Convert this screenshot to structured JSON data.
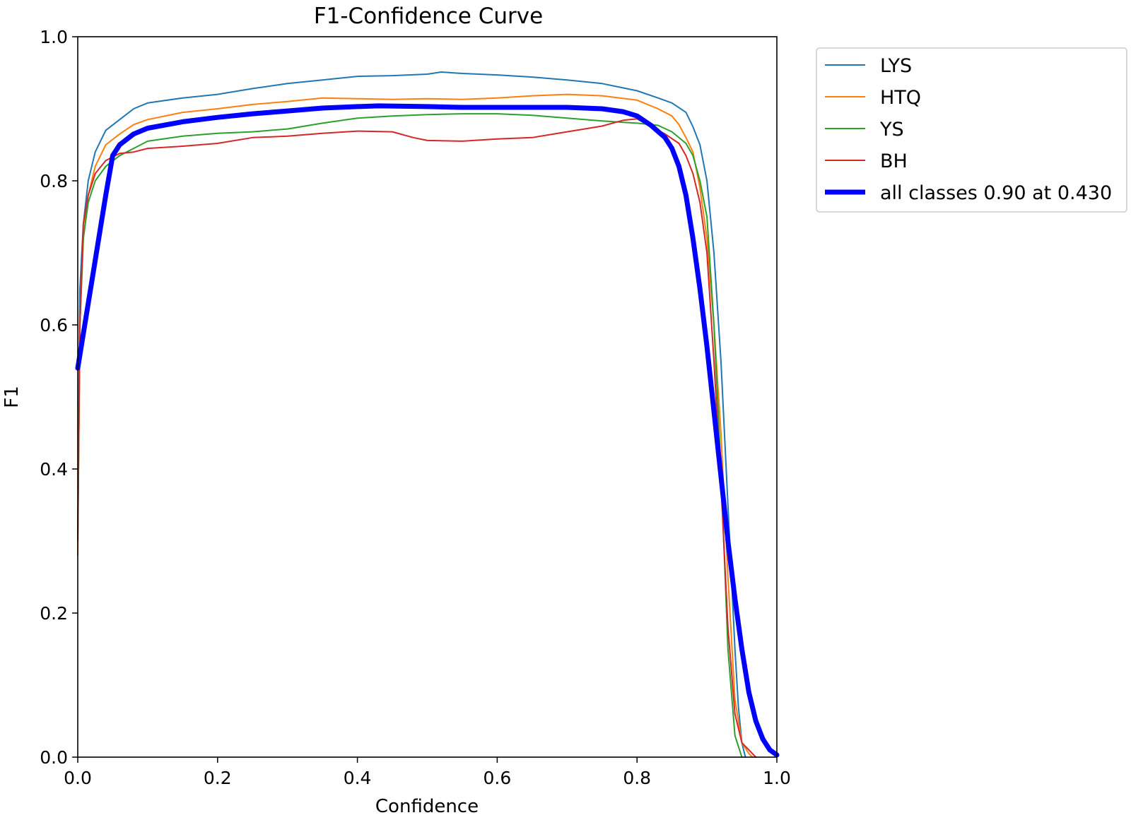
{
  "chart_data": {
    "type": "line",
    "title": "F1-Confidence Curve",
    "xlabel": "Confidence",
    "ylabel": "F1",
    "xlim": [
      0.0,
      1.0
    ],
    "ylim": [
      0.0,
      1.0
    ],
    "xticks": [
      "0.0",
      "0.2",
      "0.4",
      "0.6",
      "0.8",
      "1.0"
    ],
    "yticks": [
      "0.0",
      "0.2",
      "0.4",
      "0.6",
      "0.8",
      "1.0"
    ],
    "xtick_values": [
      0.0,
      0.2,
      0.4,
      0.6,
      0.8,
      1.0
    ],
    "ytick_values": [
      0.0,
      0.2,
      0.4,
      0.6,
      0.8,
      1.0
    ],
    "grid": false,
    "legend_position": "outside-right-top",
    "series": [
      {
        "name": "LYS",
        "color": "#1f77b4",
        "points": [
          [
            0.0,
            0.3
          ],
          [
            0.003,
            0.65
          ],
          [
            0.008,
            0.74
          ],
          [
            0.015,
            0.8
          ],
          [
            0.025,
            0.84
          ],
          [
            0.04,
            0.87
          ],
          [
            0.06,
            0.885
          ],
          [
            0.08,
            0.9
          ],
          [
            0.1,
            0.908
          ],
          [
            0.15,
            0.915
          ],
          [
            0.2,
            0.92
          ],
          [
            0.25,
            0.928
          ],
          [
            0.3,
            0.935
          ],
          [
            0.35,
            0.94
          ],
          [
            0.4,
            0.945
          ],
          [
            0.45,
            0.946
          ],
          [
            0.5,
            0.948
          ],
          [
            0.52,
            0.951
          ],
          [
            0.55,
            0.949
          ],
          [
            0.6,
            0.947
          ],
          [
            0.65,
            0.944
          ],
          [
            0.7,
            0.94
          ],
          [
            0.75,
            0.935
          ],
          [
            0.8,
            0.925
          ],
          [
            0.83,
            0.915
          ],
          [
            0.85,
            0.908
          ],
          [
            0.87,
            0.895
          ],
          [
            0.88,
            0.875
          ],
          [
            0.89,
            0.85
          ],
          [
            0.9,
            0.8
          ],
          [
            0.91,
            0.7
          ],
          [
            0.92,
            0.55
          ],
          [
            0.93,
            0.35
          ],
          [
            0.94,
            0.15
          ],
          [
            0.945,
            0.07
          ],
          [
            0.95,
            0.02
          ],
          [
            0.955,
            0.0
          ]
        ]
      },
      {
        "name": "HTQ",
        "color": "#ff7f0e",
        "points": [
          [
            0.0,
            0.28
          ],
          [
            0.003,
            0.6
          ],
          [
            0.008,
            0.72
          ],
          [
            0.015,
            0.78
          ],
          [
            0.025,
            0.82
          ],
          [
            0.04,
            0.85
          ],
          [
            0.06,
            0.865
          ],
          [
            0.08,
            0.878
          ],
          [
            0.1,
            0.885
          ],
          [
            0.15,
            0.895
          ],
          [
            0.2,
            0.9
          ],
          [
            0.25,
            0.906
          ],
          [
            0.3,
            0.91
          ],
          [
            0.35,
            0.915
          ],
          [
            0.4,
            0.914
          ],
          [
            0.45,
            0.913
          ],
          [
            0.5,
            0.914
          ],
          [
            0.55,
            0.913
          ],
          [
            0.6,
            0.915
          ],
          [
            0.65,
            0.918
          ],
          [
            0.7,
            0.92
          ],
          [
            0.75,
            0.918
          ],
          [
            0.8,
            0.912
          ],
          [
            0.83,
            0.9
          ],
          [
            0.85,
            0.89
          ],
          [
            0.86,
            0.878
          ],
          [
            0.87,
            0.86
          ],
          [
            0.88,
            0.84
          ],
          [
            0.89,
            0.79
          ],
          [
            0.9,
            0.72
          ],
          [
            0.91,
            0.6
          ],
          [
            0.92,
            0.45
          ],
          [
            0.93,
            0.25
          ],
          [
            0.94,
            0.08
          ],
          [
            0.95,
            0.02
          ],
          [
            0.96,
            0.005
          ],
          [
            0.965,
            0.0
          ]
        ]
      },
      {
        "name": "YS",
        "color": "#2ca02c",
        "points": [
          [
            0.0,
            0.3
          ],
          [
            0.003,
            0.6
          ],
          [
            0.008,
            0.72
          ],
          [
            0.015,
            0.77
          ],
          [
            0.025,
            0.8
          ],
          [
            0.04,
            0.82
          ],
          [
            0.06,
            0.835
          ],
          [
            0.08,
            0.845
          ],
          [
            0.1,
            0.855
          ],
          [
            0.15,
            0.862
          ],
          [
            0.2,
            0.866
          ],
          [
            0.25,
            0.868
          ],
          [
            0.3,
            0.872
          ],
          [
            0.35,
            0.88
          ],
          [
            0.4,
            0.887
          ],
          [
            0.45,
            0.89
          ],
          [
            0.5,
            0.892
          ],
          [
            0.55,
            0.893
          ],
          [
            0.6,
            0.893
          ],
          [
            0.65,
            0.891
          ],
          [
            0.7,
            0.887
          ],
          [
            0.75,
            0.883
          ],
          [
            0.8,
            0.88
          ],
          [
            0.83,
            0.877
          ],
          [
            0.85,
            0.868
          ],
          [
            0.87,
            0.852
          ],
          [
            0.88,
            0.835
          ],
          [
            0.89,
            0.8
          ],
          [
            0.9,
            0.75
          ],
          [
            0.91,
            0.6
          ],
          [
            0.92,
            0.4
          ],
          [
            0.93,
            0.15
          ],
          [
            0.94,
            0.03
          ],
          [
            0.95,
            0.0
          ]
        ]
      },
      {
        "name": "BH",
        "color": "#d62728",
        "points": [
          [
            0.0,
            0.3
          ],
          [
            0.003,
            0.6
          ],
          [
            0.008,
            0.74
          ],
          [
            0.015,
            0.78
          ],
          [
            0.025,
            0.81
          ],
          [
            0.04,
            0.828
          ],
          [
            0.06,
            0.838
          ],
          [
            0.08,
            0.84
          ],
          [
            0.1,
            0.845
          ],
          [
            0.15,
            0.848
          ],
          [
            0.2,
            0.852
          ],
          [
            0.25,
            0.86
          ],
          [
            0.3,
            0.862
          ],
          [
            0.35,
            0.866
          ],
          [
            0.4,
            0.869
          ],
          [
            0.45,
            0.868
          ],
          [
            0.48,
            0.86
          ],
          [
            0.5,
            0.856
          ],
          [
            0.55,
            0.855
          ],
          [
            0.6,
            0.858
          ],
          [
            0.65,
            0.86
          ],
          [
            0.7,
            0.868
          ],
          [
            0.75,
            0.876
          ],
          [
            0.78,
            0.884
          ],
          [
            0.8,
            0.886
          ],
          [
            0.82,
            0.875
          ],
          [
            0.84,
            0.865
          ],
          [
            0.86,
            0.852
          ],
          [
            0.87,
            0.835
          ],
          [
            0.88,
            0.81
          ],
          [
            0.89,
            0.77
          ],
          [
            0.9,
            0.7
          ],
          [
            0.91,
            0.55
          ],
          [
            0.92,
            0.38
          ],
          [
            0.93,
            0.18
          ],
          [
            0.94,
            0.06
          ],
          [
            0.95,
            0.02
          ],
          [
            0.96,
            0.01
          ],
          [
            0.97,
            0.0
          ]
        ]
      },
      {
        "name": "all classes 0.90 at 0.430",
        "color": "#0000ff",
        "thick": true,
        "points": [
          [
            0.0,
            0.54
          ],
          [
            0.01,
            0.6
          ],
          [
            0.02,
            0.66
          ],
          [
            0.03,
            0.72
          ],
          [
            0.04,
            0.78
          ],
          [
            0.05,
            0.835
          ],
          [
            0.06,
            0.85
          ],
          [
            0.08,
            0.865
          ],
          [
            0.1,
            0.873
          ],
          [
            0.15,
            0.882
          ],
          [
            0.2,
            0.888
          ],
          [
            0.25,
            0.893
          ],
          [
            0.3,
            0.897
          ],
          [
            0.35,
            0.901
          ],
          [
            0.4,
            0.903
          ],
          [
            0.43,
            0.904
          ],
          [
            0.5,
            0.903
          ],
          [
            0.55,
            0.902
          ],
          [
            0.6,
            0.902
          ],
          [
            0.65,
            0.902
          ],
          [
            0.7,
            0.902
          ],
          [
            0.75,
            0.9
          ],
          [
            0.78,
            0.896
          ],
          [
            0.8,
            0.89
          ],
          [
            0.82,
            0.877
          ],
          [
            0.84,
            0.86
          ],
          [
            0.85,
            0.845
          ],
          [
            0.86,
            0.82
          ],
          [
            0.87,
            0.78
          ],
          [
            0.88,
            0.72
          ],
          [
            0.89,
            0.65
          ],
          [
            0.9,
            0.57
          ],
          [
            0.91,
            0.48
          ],
          [
            0.92,
            0.39
          ],
          [
            0.93,
            0.3
          ],
          [
            0.94,
            0.22
          ],
          [
            0.95,
            0.15
          ],
          [
            0.96,
            0.09
          ],
          [
            0.97,
            0.05
          ],
          [
            0.98,
            0.025
          ],
          [
            0.99,
            0.01
          ],
          [
            1.0,
            0.003
          ]
        ]
      }
    ]
  }
}
